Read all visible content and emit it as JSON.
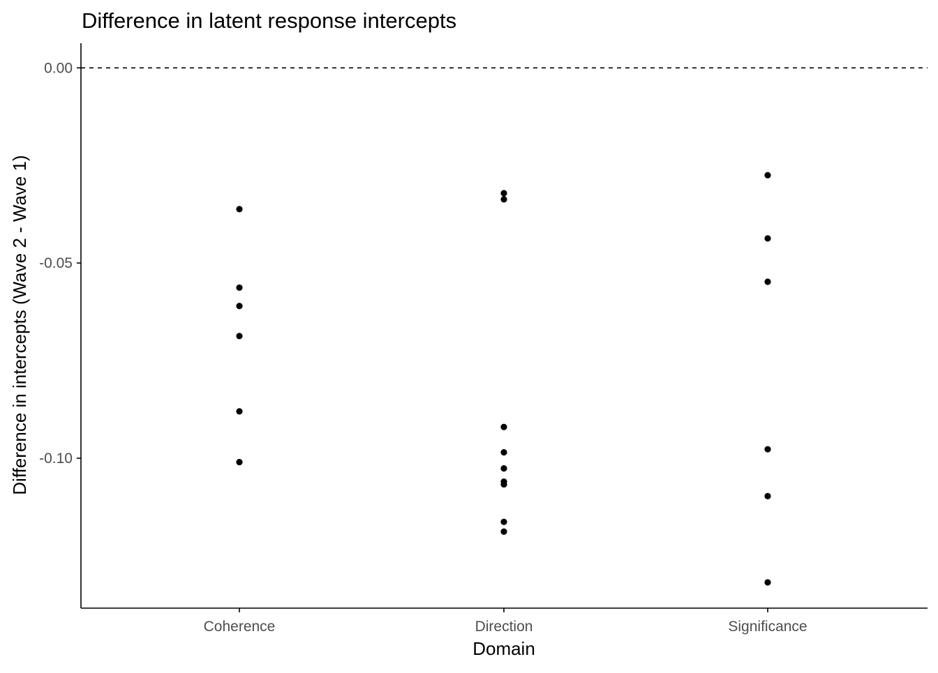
{
  "chart_data": {
    "type": "scatter",
    "title": "Difference in latent response intercepts",
    "xlabel": "Domain",
    "ylabel": "Difference in intercepts (Wave 2 - Wave 1)",
    "categories": [
      "Coherence",
      "Direction",
      "Significance"
    ],
    "ylim": [
      -0.1384,
      0.0063
    ],
    "yticks": [
      0.0,
      -0.05,
      -0.1
    ],
    "ytick_labels": [
      "0.00",
      "-0.05",
      "-0.10"
    ],
    "grid": false,
    "legend": "none",
    "reference_line": {
      "y": 0.0,
      "style": "dashed"
    },
    "points": [
      {
        "category": "Coherence",
        "y": -0.0362
      },
      {
        "category": "Coherence",
        "y": -0.0563
      },
      {
        "category": "Coherence",
        "y": -0.061
      },
      {
        "category": "Coherence",
        "y": -0.0687
      },
      {
        "category": "Coherence",
        "y": -0.088
      },
      {
        "category": "Coherence",
        "y": -0.101
      },
      {
        "category": "Direction",
        "y": -0.0321
      },
      {
        "category": "Direction",
        "y": -0.0337
      },
      {
        "category": "Direction",
        "y": -0.092
      },
      {
        "category": "Direction",
        "y": -0.0985
      },
      {
        "category": "Direction",
        "y": -0.1026
      },
      {
        "category": "Direction",
        "y": -0.106
      },
      {
        "category": "Direction",
        "y": -0.1067
      },
      {
        "category": "Direction",
        "y": -0.1163
      },
      {
        "category": "Direction",
        "y": -0.1188
      },
      {
        "category": "Significance",
        "y": -0.0275
      },
      {
        "category": "Significance",
        "y": -0.0437
      },
      {
        "category": "Significance",
        "y": -0.0548
      },
      {
        "category": "Significance",
        "y": -0.0977
      },
      {
        "category": "Significance",
        "y": -0.1097
      },
      {
        "category": "Significance",
        "y": -0.1318
      }
    ],
    "colors": {
      "points": "#000000",
      "axis": "#000000",
      "reference_line": "#000000",
      "tick_label": "#4d4d4d"
    }
  }
}
